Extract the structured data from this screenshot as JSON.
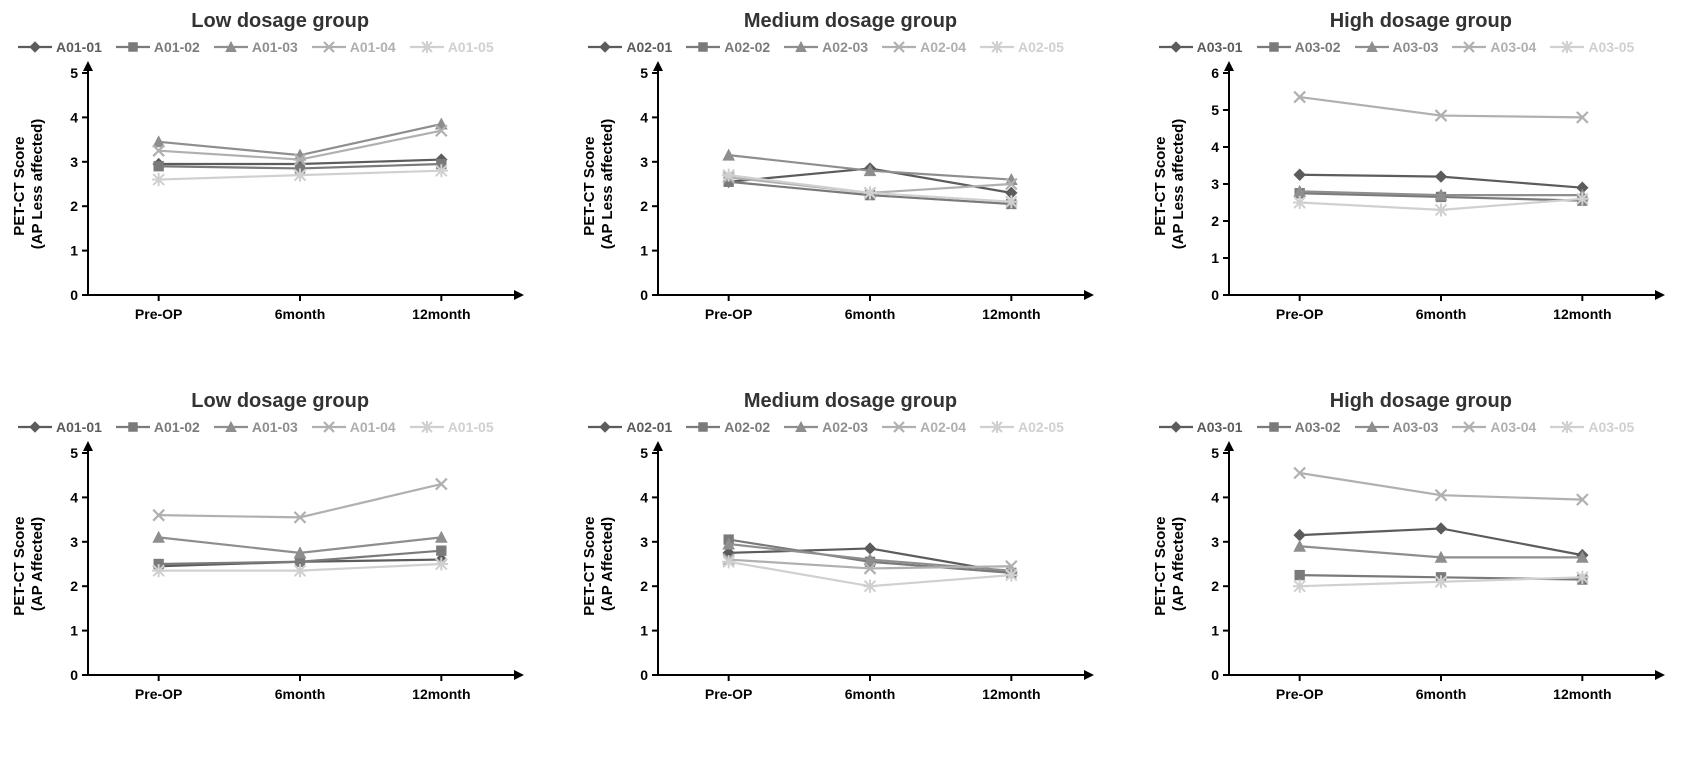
{
  "layout": {
    "figure_width": 1701,
    "figure_height": 761,
    "rows": 2,
    "cols": 3,
    "background_color": "#ffffff",
    "title_fontsize": 20,
    "legend_fontsize": 14,
    "axis_label_fontsize": 15,
    "tick_fontsize": 14,
    "axis_color": "#000000",
    "axis_linewidth": 2,
    "series_linewidth": 2.2
  },
  "x_axis": {
    "categories": [
      "Pre-OP",
      "6month",
      "12month"
    ]
  },
  "marker_shapes": [
    "diamond",
    "square",
    "triangle",
    "x",
    "star"
  ],
  "series_colors": [
    "#5c5c5c",
    "#7a7a7a",
    "#8e8e8e",
    "#b0b0b0",
    "#d0d0d0"
  ],
  "panels": [
    {
      "title": "Low dosage group",
      "ylabel_line1": "PET-CT Score",
      "ylabel_line2": "(AP Less affected)",
      "ylim": [
        0,
        5
      ],
      "ytick_step": 1,
      "series": [
        {
          "name": "A01-01",
          "values": [
            2.95,
            2.95,
            3.05
          ]
        },
        {
          "name": "A01-02",
          "values": [
            2.9,
            2.85,
            2.95
          ]
        },
        {
          "name": "A01-03",
          "values": [
            3.45,
            3.15,
            3.85
          ]
        },
        {
          "name": "A01-04",
          "values": [
            3.25,
            3.05,
            3.7
          ]
        },
        {
          "name": "A01-05",
          "values": [
            2.6,
            2.7,
            2.8
          ]
        }
      ]
    },
    {
      "title": "Medium dosage group",
      "ylabel_line1": "PET-CT Score",
      "ylabel_line2": "(AP Less affected)",
      "ylim": [
        0,
        5
      ],
      "ytick_step": 1,
      "series": [
        {
          "name": "A02-01",
          "values": [
            2.55,
            2.85,
            2.3
          ]
        },
        {
          "name": "A02-02",
          "values": [
            2.55,
            2.25,
            2.05
          ]
        },
        {
          "name": "A02-03",
          "values": [
            3.15,
            2.8,
            2.6
          ]
        },
        {
          "name": "A02-04",
          "values": [
            2.65,
            2.3,
            2.5
          ]
        },
        {
          "name": "A02-05",
          "values": [
            2.7,
            2.3,
            2.1
          ]
        }
      ]
    },
    {
      "title": "High dosage group",
      "ylabel_line1": "PET-CT Score",
      "ylabel_line2": "(AP Less affected)",
      "ylim": [
        0,
        6
      ],
      "ytick_step": 1,
      "series": [
        {
          "name": "A03-01",
          "values": [
            3.25,
            3.2,
            2.9
          ]
        },
        {
          "name": "A03-02",
          "values": [
            2.75,
            2.65,
            2.55
          ]
        },
        {
          "name": "A03-03",
          "values": [
            2.8,
            2.7,
            2.7
          ]
        },
        {
          "name": "A03-04",
          "values": [
            5.35,
            4.85,
            4.8
          ]
        },
        {
          "name": "A03-05",
          "values": [
            2.5,
            2.3,
            2.6
          ]
        }
      ]
    },
    {
      "title": "Low dosage group",
      "ylabel_line1": "PET-CT Score",
      "ylabel_line2": "(AP Affected)",
      "ylim": [
        0,
        5
      ],
      "ytick_step": 1,
      "series": [
        {
          "name": "A01-01",
          "values": [
            2.45,
            2.55,
            2.6
          ]
        },
        {
          "name": "A01-02",
          "values": [
            2.5,
            2.55,
            2.8
          ]
        },
        {
          "name": "A01-03",
          "values": [
            3.1,
            2.75,
            3.1
          ]
        },
        {
          "name": "A01-04",
          "values": [
            3.6,
            3.55,
            4.3
          ]
        },
        {
          "name": "A01-05",
          "values": [
            2.35,
            2.35,
            2.5
          ]
        }
      ]
    },
    {
      "title": "Medium dosage group",
      "ylabel_line1": "PET-CT Score",
      "ylabel_line2": "(AP Affected)",
      "ylim": [
        0,
        5
      ],
      "ytick_step": 1,
      "series": [
        {
          "name": "A02-01",
          "values": [
            2.75,
            2.85,
            2.3
          ]
        },
        {
          "name": "A02-02",
          "values": [
            3.05,
            2.55,
            2.3
          ]
        },
        {
          "name": "A02-03",
          "values": [
            2.95,
            2.6,
            2.35
          ]
        },
        {
          "name": "A02-04",
          "values": [
            2.6,
            2.4,
            2.45
          ]
        },
        {
          "name": "A02-05",
          "values": [
            2.55,
            2.0,
            2.25
          ]
        }
      ]
    },
    {
      "title": "High dosage group",
      "ylabel_line1": "PET-CT Score",
      "ylabel_line2": "(AP Affected)",
      "ylim": [
        0,
        5
      ],
      "ytick_step": 1,
      "series": [
        {
          "name": "A03-01",
          "values": [
            3.15,
            3.3,
            2.7
          ]
        },
        {
          "name": "A03-02",
          "values": [
            2.25,
            2.2,
            2.15
          ]
        },
        {
          "name": "A03-03",
          "values": [
            2.9,
            2.65,
            2.65
          ]
        },
        {
          "name": "A03-04",
          "values": [
            4.55,
            4.05,
            3.95
          ]
        },
        {
          "name": "A03-05",
          "values": [
            2.0,
            2.1,
            2.2
          ]
        }
      ]
    }
  ]
}
